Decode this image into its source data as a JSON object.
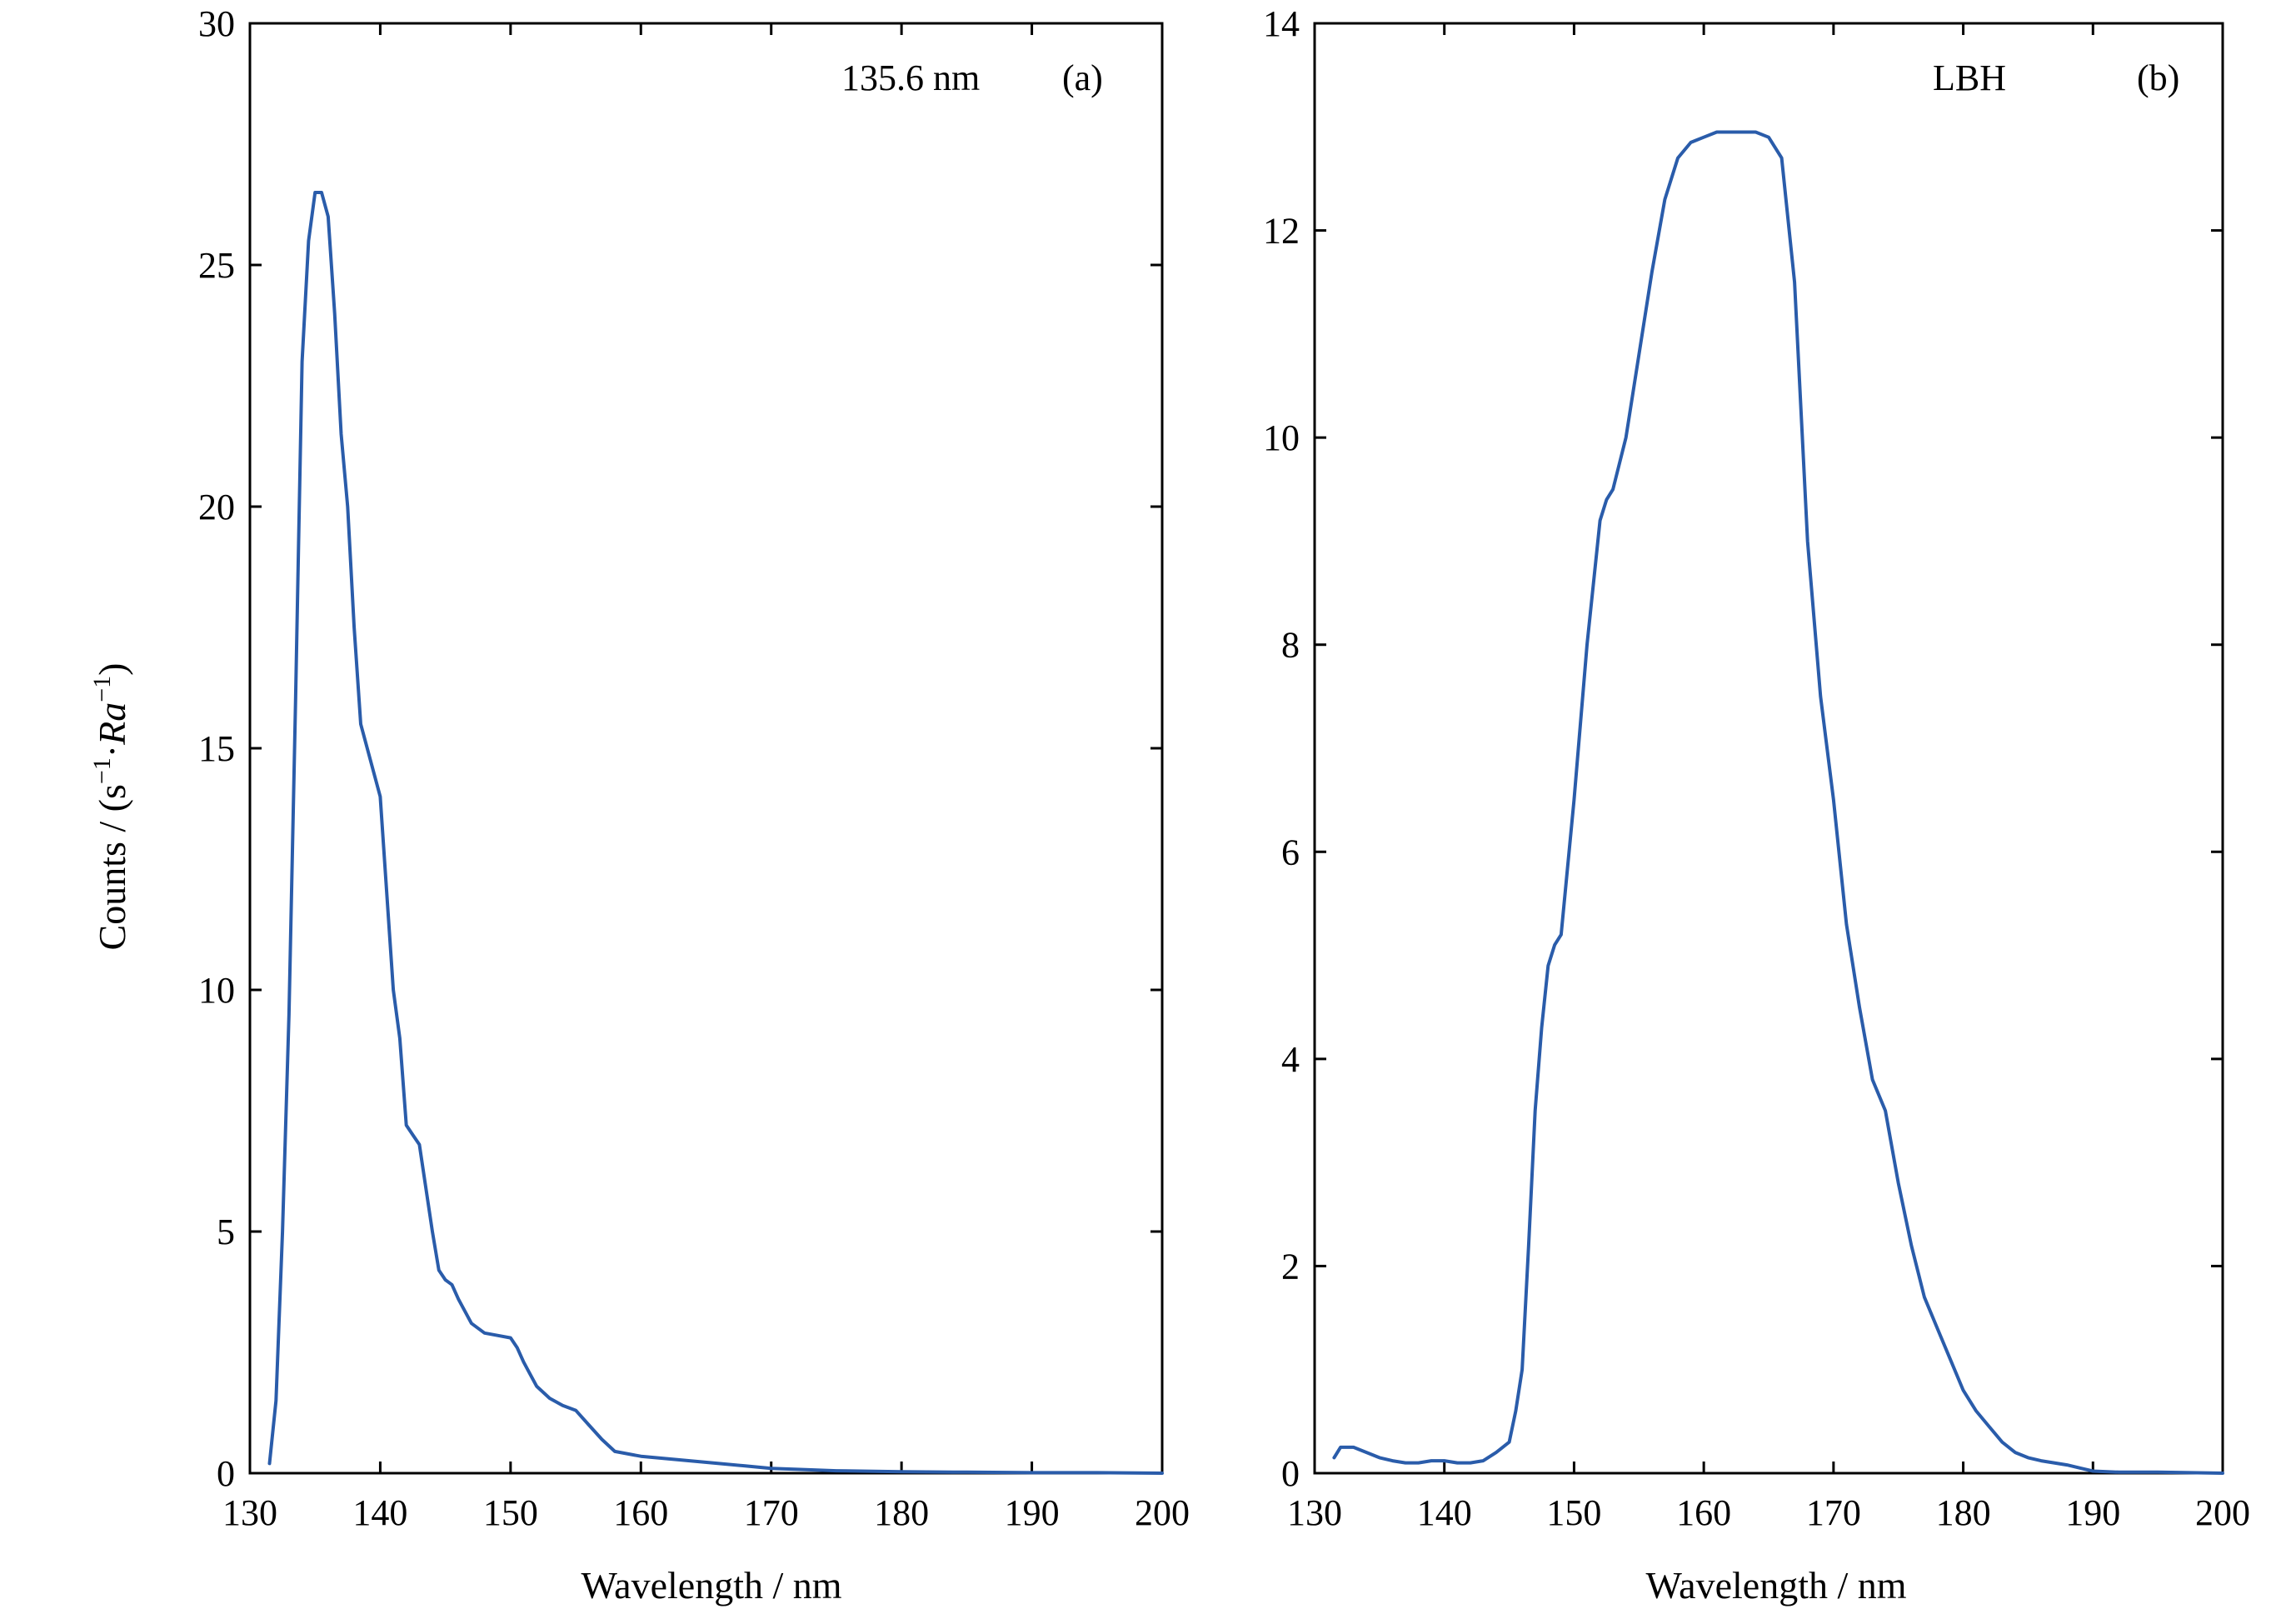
{
  "colors": {
    "line": "#2a5caa",
    "axis": "#000000",
    "background": "#ffffff"
  },
  "chart_data": [
    {
      "type": "line",
      "panel": "(a)",
      "title": "",
      "annotation": "135.6 nm",
      "xlabel": "Wavelength / nm",
      "ylabel": {
        "prefix": "Counts / (s",
        "sup1": "−1",
        "mid": "·",
        "italic": "Ra",
        "sup2": "−1",
        "suffix": ")"
      },
      "xlim": [
        130,
        200
      ],
      "ylim": [
        0,
        30
      ],
      "xticks": [
        130,
        140,
        150,
        160,
        170,
        180,
        190,
        200
      ],
      "yticks": [
        0,
        5,
        10,
        15,
        20,
        25,
        30
      ],
      "grid": false,
      "legend": "none",
      "series": [
        {
          "x": [
            131.5,
            132,
            132.5,
            133,
            133.5,
            134,
            134.5,
            135,
            135.5,
            136,
            136.5,
            137,
            137.5,
            138,
            138.5,
            139,
            139.5,
            140,
            141,
            141.5,
            142,
            142.5,
            143,
            144,
            144.5,
            145,
            145.5,
            146,
            147,
            148,
            149,
            150,
            150.5,
            151,
            152,
            153,
            154,
            155,
            156,
            157,
            158,
            160,
            162,
            164,
            166,
            168,
            170,
            172,
            175,
            180,
            185,
            190,
            195,
            200
          ],
          "y": [
            0.2,
            1.5,
            5.0,
            9.5,
            16.0,
            23.0,
            25.5,
            26.5,
            26.5,
            26.0,
            24.0,
            21.5,
            20.0,
            17.5,
            15.5,
            15.0,
            14.5,
            14.0,
            10.0,
            9.0,
            7.2,
            7.0,
            6.8,
            5.0,
            4.2,
            4.0,
            3.9,
            3.6,
            3.1,
            2.9,
            2.85,
            2.8,
            2.6,
            2.3,
            1.8,
            1.55,
            1.4,
            1.3,
            1.0,
            0.7,
            0.45,
            0.35,
            0.3,
            0.25,
            0.2,
            0.15,
            0.1,
            0.08,
            0.05,
            0.03,
            0.02,
            0.01,
            0.01,
            0.0
          ]
        }
      ]
    },
    {
      "type": "line",
      "panel": "(b)",
      "title": "",
      "annotation": "LBH",
      "xlabel": "Wavelength / nm",
      "ylabel": "",
      "xlim": [
        130,
        200
      ],
      "ylim": [
        0,
        14
      ],
      "xticks": [
        130,
        140,
        150,
        160,
        170,
        180,
        190,
        200
      ],
      "yticks": [
        0,
        2,
        4,
        6,
        8,
        10,
        12,
        14
      ],
      "grid": false,
      "legend": "none",
      "series": [
        {
          "x": [
            131.5,
            132,
            133,
            134,
            135,
            136,
            137,
            138,
            139,
            140,
            141,
            142,
            143,
            144,
            145,
            145.5,
            146,
            146.5,
            147,
            147.5,
            148,
            148.5,
            149,
            150,
            151,
            152,
            152.5,
            153,
            154,
            155,
            156,
            157,
            158,
            159,
            160,
            161,
            162,
            163,
            164,
            165,
            166,
            167,
            168,
            169,
            170,
            171,
            172,
            173,
            174,
            175,
            176,
            177,
            178,
            179,
            180,
            181,
            182,
            183,
            184,
            185,
            186,
            187,
            188,
            189,
            190,
            192,
            195,
            200
          ],
          "y": [
            0.15,
            0.25,
            0.25,
            0.2,
            0.15,
            0.12,
            0.1,
            0.1,
            0.12,
            0.12,
            0.1,
            0.1,
            0.12,
            0.2,
            0.3,
            0.6,
            1.0,
            2.2,
            3.5,
            4.3,
            4.9,
            5.1,
            5.2,
            6.5,
            8.0,
            9.2,
            9.4,
            9.5,
            10.0,
            10.8,
            11.6,
            12.3,
            12.7,
            12.85,
            12.9,
            12.95,
            12.95,
            12.95,
            12.95,
            12.9,
            12.7,
            11.5,
            9.0,
            7.5,
            6.5,
            5.3,
            4.5,
            3.8,
            3.5,
            2.8,
            2.2,
            1.7,
            1.4,
            1.1,
            0.8,
            0.6,
            0.45,
            0.3,
            0.2,
            0.15,
            0.12,
            0.1,
            0.08,
            0.05,
            0.02,
            0.01,
            0.01,
            0.0
          ]
        }
      ]
    }
  ]
}
